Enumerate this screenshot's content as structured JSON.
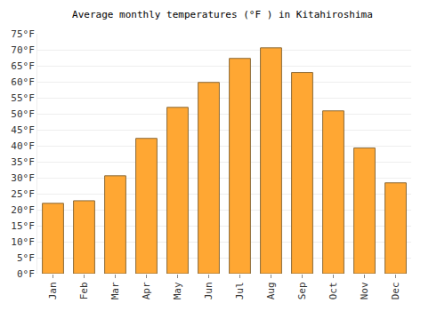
{
  "chart_data": {
    "type": "bar",
    "title": "Average monthly temperatures (°F ) in Kitahiroshima",
    "categories": [
      "Jan",
      "Feb",
      "Mar",
      "Apr",
      "May",
      "Jun",
      "Jul",
      "Aug",
      "Sep",
      "Oct",
      "Nov",
      "Dec"
    ],
    "values": [
      22,
      22.8,
      30.6,
      42.3,
      52,
      59.8,
      67.3,
      70.6,
      62.9,
      50.9,
      39.3,
      28.4
    ],
    "color": "#ffa733",
    "ylim": [
      0,
      75
    ],
    "yticks": [
      {
        "value": 0,
        "label": "0°F"
      },
      {
        "value": 5,
        "label": "5°F"
      },
      {
        "value": 10,
        "label": "10°F"
      },
      {
        "value": 15,
        "label": "15°F"
      },
      {
        "value": 20,
        "label": "20°F"
      },
      {
        "value": 25,
        "label": "25°F"
      },
      {
        "value": 30,
        "label": "30°F"
      },
      {
        "value": 35,
        "label": "35°F"
      },
      {
        "value": 40,
        "label": "40°F"
      },
      {
        "value": 45,
        "label": "45°F"
      },
      {
        "value": 50,
        "label": "50°F"
      },
      {
        "value": 55,
        "label": "55°F"
      },
      {
        "value": 60,
        "label": "60°F"
      },
      {
        "value": 65,
        "label": "65°F"
      },
      {
        "value": 70,
        "label": "70°F"
      },
      {
        "value": 75,
        "label": "75°F"
      }
    ],
    "grid": true
  }
}
